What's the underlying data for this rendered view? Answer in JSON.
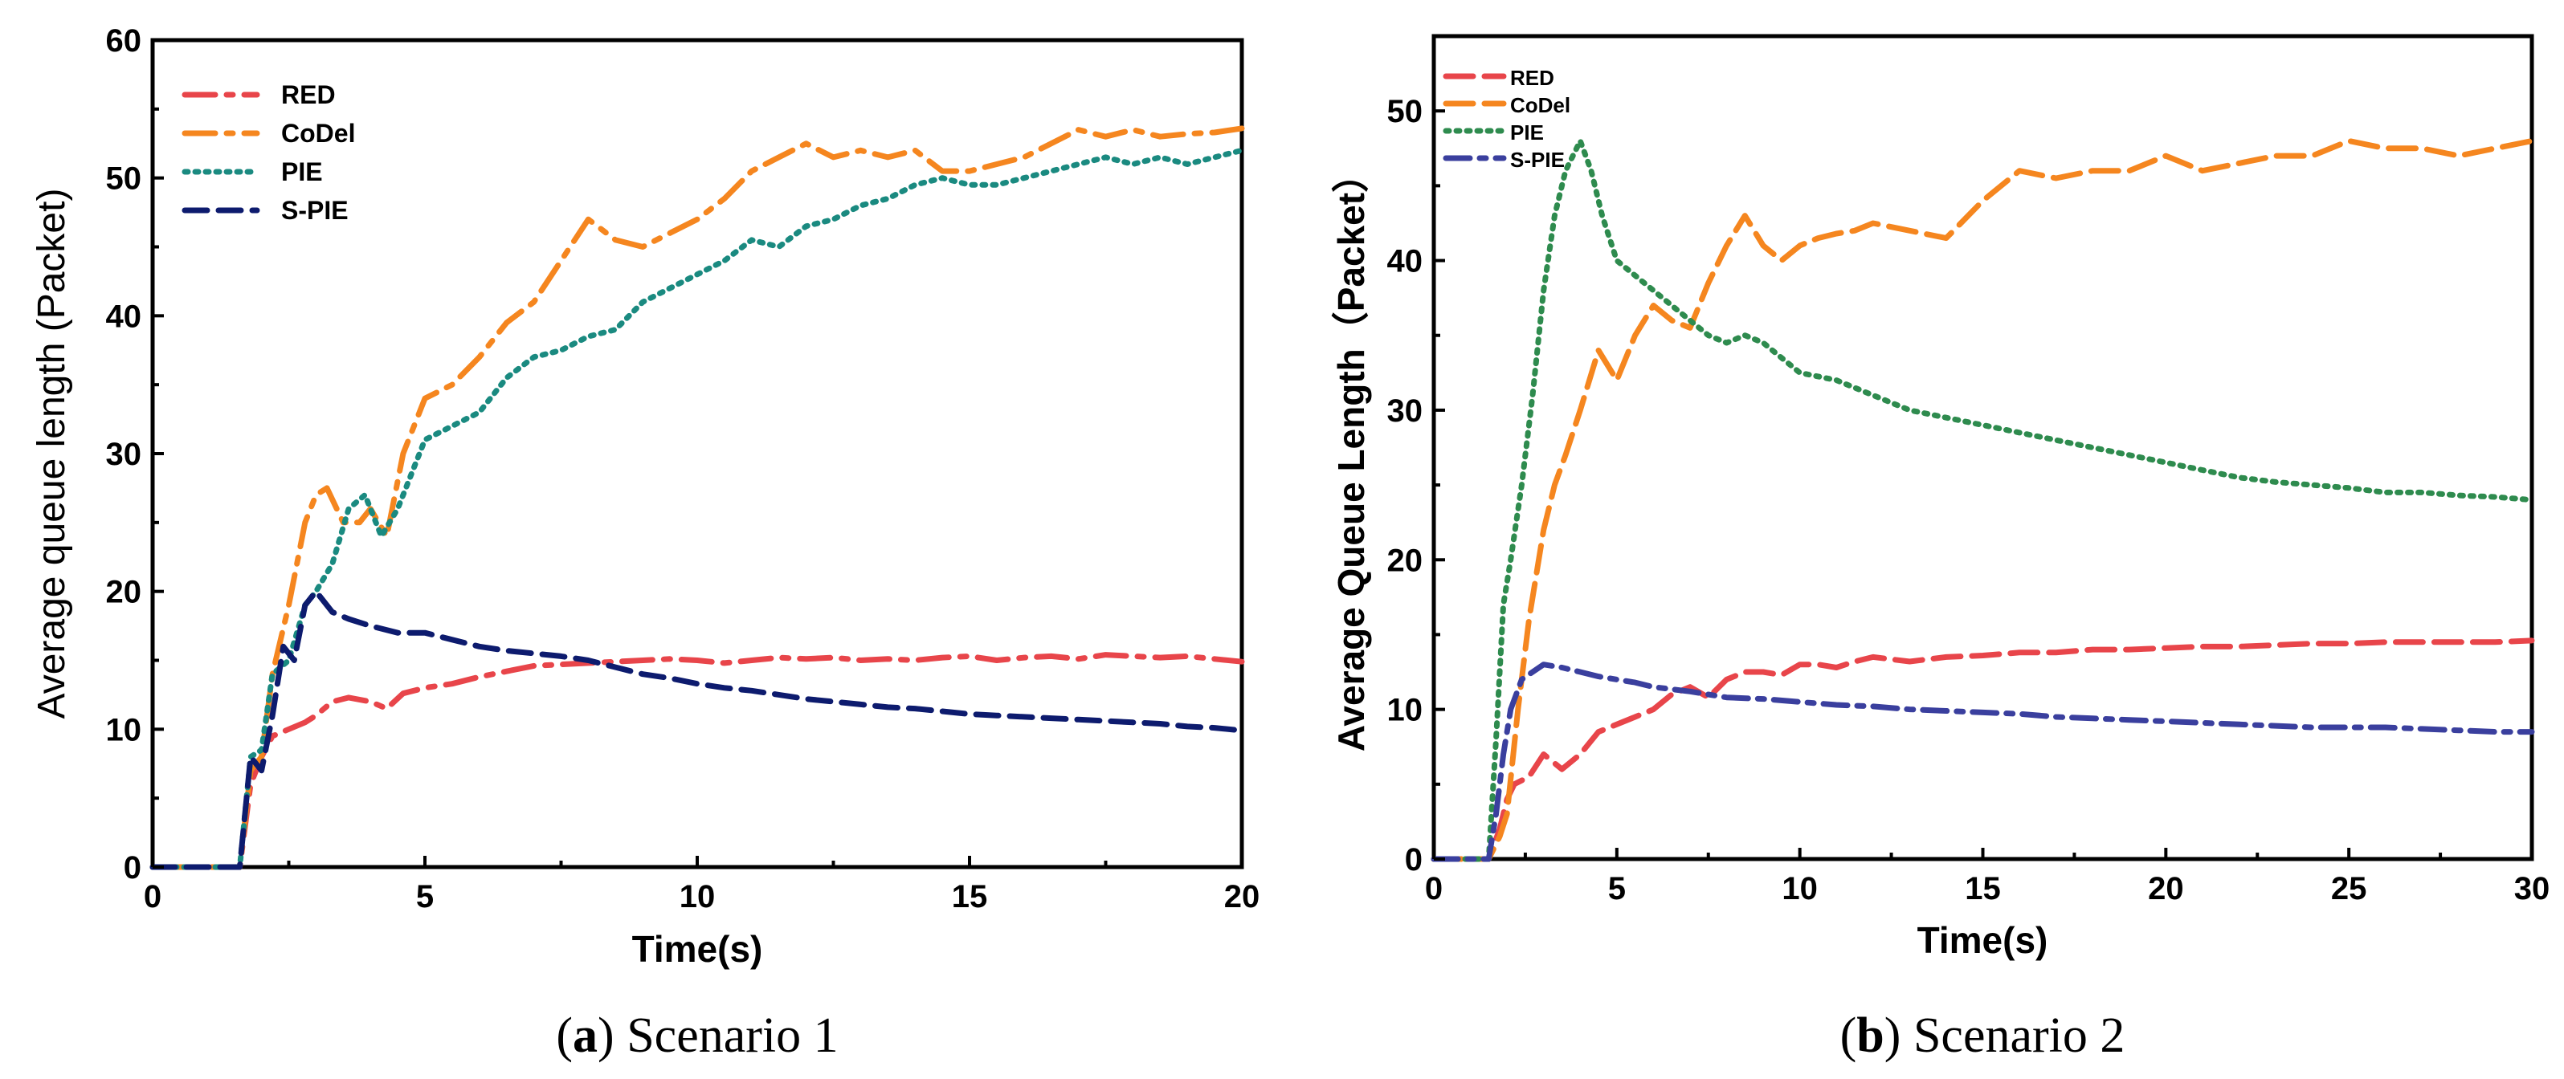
{
  "chart_data": [
    {
      "type": "line",
      "ylabel": "Average queue length (Packet)",
      "xlabel": "Time(s)",
      "xlim": [
        0,
        20
      ],
      "ylim": [
        0,
        60
      ],
      "xticks": [
        0,
        5,
        10,
        15,
        20
      ],
      "yticks": [
        0,
        10,
        20,
        30,
        40,
        50,
        60
      ],
      "legend_position": "top-left",
      "caption_letter": "a",
      "caption_text": "Scenario 1",
      "series": [
        {
          "name": "RED",
          "color": "#e8454a",
          "dash": "38,14,8,14",
          "x": [
            0,
            1.6,
            1.8,
            2.0,
            2.2,
            2.5,
            2.8,
            3.0,
            3.3,
            3.6,
            4.0,
            4.3,
            4.6,
            5.0,
            5.5,
            6.0,
            6.5,
            7.0,
            7.5,
            8.0,
            8.5,
            9.0,
            9.5,
            10.0,
            10.5,
            11.0,
            11.5,
            12.0,
            12.5,
            13.0,
            13.5,
            14.0,
            14.5,
            15.0,
            15.5,
            16.0,
            16.5,
            17.0,
            17.5,
            18.0,
            18.5,
            19.0,
            19.5,
            20.0
          ],
          "y": [
            0,
            0,
            6,
            8,
            9.5,
            10,
            10.5,
            11,
            12,
            12.3,
            12,
            11.5,
            12.6,
            13,
            13.3,
            13.8,
            14.2,
            14.6,
            14.7,
            14.8,
            14.9,
            15,
            15.1,
            15,
            14.8,
            15,
            15.2,
            15.1,
            15.2,
            15,
            15.1,
            15,
            15.2,
            15.3,
            15,
            15.2,
            15.3,
            15.1,
            15.4,
            15.3,
            15.2,
            15.3,
            15.1,
            14.9
          ]
        },
        {
          "name": "CoDel",
          "color": "#f5861f",
          "dash": "38,14,8,14",
          "x": [
            0,
            1.6,
            1.8,
            2.0,
            2.2,
            2.5,
            2.8,
            3.0,
            3.2,
            3.5,
            3.8,
            4.0,
            4.3,
            4.6,
            5.0,
            5.5,
            6.0,
            6.5,
            7.0,
            7.5,
            8.0,
            8.5,
            9.0,
            9.5,
            10.0,
            10.5,
            11.0,
            11.5,
            12.0,
            12.5,
            13.0,
            13.5,
            14.0,
            14.5,
            15.0,
            15.5,
            16.0,
            16.5,
            17.0,
            17.5,
            18.0,
            18.5,
            19.0,
            19.5,
            20.0
          ],
          "y": [
            0,
            0,
            7,
            8,
            14,
            19,
            25,
            27,
            27.5,
            25,
            25,
            26,
            24,
            30,
            34,
            35,
            37,
            39.5,
            41,
            44,
            47,
            45.5,
            45,
            46,
            47,
            48.5,
            50.5,
            51.5,
            52.5,
            51.5,
            52,
            51.5,
            52,
            50.5,
            50.5,
            51,
            51.5,
            52.5,
            53.5,
            53,
            53.5,
            53,
            53.2,
            53.3,
            53.6
          ]
        },
        {
          "name": "PIE",
          "color": "#1a8a80",
          "dash": "4,9",
          "x": [
            0,
            1.6,
            1.8,
            2.0,
            2.2,
            2.5,
            2.8,
            3.0,
            3.3,
            3.6,
            3.9,
            4.2,
            4.5,
            5.0,
            5.5,
            6.0,
            6.5,
            7.0,
            7.5,
            8.0,
            8.5,
            9.0,
            9.5,
            10.0,
            10.5,
            11.0,
            11.5,
            12.0,
            12.5,
            13.0,
            13.5,
            14.0,
            14.5,
            15.0,
            15.5,
            16.0,
            16.5,
            17.0,
            17.5,
            18.0,
            18.5,
            19.0,
            19.5,
            20.0
          ],
          "y": [
            0,
            0,
            8,
            8.5,
            14,
            15,
            19,
            20,
            22,
            26,
            27,
            24,
            26,
            31,
            32,
            33,
            35.5,
            37,
            37.5,
            38.5,
            39,
            41,
            42,
            43,
            44,
            45.5,
            45,
            46.5,
            47,
            48,
            48.5,
            49.5,
            50,
            49.5,
            49.5,
            50,
            50.5,
            51,
            51.5,
            51,
            51.5,
            51,
            51.5,
            52
          ]
        },
        {
          "name": "S-PIE",
          "color": "#0d1b6e",
          "dash": "28,14",
          "x": [
            0,
            1.6,
            1.8,
            2.0,
            2.2,
            2.4,
            2.6,
            2.8,
            3.0,
            3.3,
            3.6,
            4.0,
            4.5,
            5.0,
            5.5,
            6.0,
            6.5,
            7.0,
            7.5,
            8.0,
            8.5,
            9.0,
            9.5,
            10.0,
            10.5,
            11.0,
            11.5,
            12.0,
            12.5,
            13.0,
            13.5,
            14.0,
            14.5,
            15.0,
            15.5,
            16.0,
            16.5,
            17.0,
            17.5,
            18.0,
            18.5,
            19.0,
            19.5,
            20.0
          ],
          "y": [
            0,
            0,
            8,
            7,
            11,
            16,
            15,
            19,
            20,
            18.5,
            18,
            17.5,
            17,
            17,
            16.5,
            16,
            15.7,
            15.5,
            15.3,
            15,
            14.5,
            14,
            13.7,
            13.3,
            13,
            12.8,
            12.5,
            12.2,
            12,
            11.8,
            11.6,
            11.5,
            11.3,
            11.1,
            11,
            10.9,
            10.8,
            10.7,
            10.6,
            10.5,
            10.4,
            10.2,
            10.1,
            9.9
          ]
        }
      ]
    },
    {
      "type": "line",
      "ylabel": "Average Queue Length（Packet）",
      "xlabel": "Time(s)",
      "xlim": [
        0,
        30
      ],
      "ylim": [
        0,
        55
      ],
      "xticks": [
        0,
        5,
        10,
        15,
        20,
        25,
        30
      ],
      "yticks": [
        0,
        10,
        20,
        30,
        40,
        50
      ],
      "legend_position": "top-left",
      "caption_letter": "b",
      "caption_text": "Scenario 2",
      "series": [
        {
          "name": "RED",
          "color": "#e8454a",
          "dash": "34,14",
          "x": [
            0,
            1.5,
            1.8,
            2.0,
            2.2,
            2.6,
            3.0,
            3.5,
            4.0,
            4.5,
            5.0,
            5.5,
            6.0,
            6.5,
            7.0,
            7.5,
            8.0,
            8.5,
            9.0,
            9.5,
            10.0,
            10.5,
            11.0,
            11.5,
            12.0,
            13.0,
            14.0,
            15.0,
            16.0,
            17.0,
            18.0,
            19.0,
            20.0,
            21.0,
            22.0,
            23.0,
            24.0,
            25.0,
            26.0,
            27.0,
            28.0,
            29.0,
            30.0
          ],
          "y": [
            0,
            0,
            2,
            4,
            5,
            5.5,
            7,
            6,
            7,
            8.5,
            9,
            9.5,
            10,
            11,
            11.5,
            10.8,
            12,
            12.5,
            12.5,
            12.3,
            13,
            13,
            12.8,
            13.2,
            13.5,
            13.2,
            13.5,
            13.6,
            13.8,
            13.8,
            14,
            14,
            14.1,
            14.2,
            14.2,
            14.3,
            14.4,
            14.4,
            14.5,
            14.5,
            14.5,
            14.5,
            14.6
          ]
        },
        {
          "name": "CoDel",
          "color": "#f5861f",
          "dash": "34,14",
          "x": [
            0,
            1.5,
            1.8,
            2.0,
            2.3,
            2.6,
            3.0,
            3.3,
            3.6,
            4.0,
            4.5,
            5.0,
            5.5,
            6.0,
            6.5,
            7.0,
            7.5,
            8.0,
            8.5,
            9.0,
            9.5,
            10.0,
            10.5,
            11.0,
            11.5,
            12.0,
            13.0,
            14.0,
            15.0,
            16.0,
            17.0,
            18.0,
            19.0,
            20.0,
            21.0,
            22.0,
            23.0,
            24.0,
            25.0,
            26.0,
            27.0,
            28.0,
            29.0,
            30.0
          ],
          "y": [
            0,
            0,
            1.5,
            3,
            10,
            16,
            22,
            25,
            27,
            30,
            34,
            32,
            35,
            37,
            36,
            35.5,
            38.5,
            41,
            43,
            41,
            40,
            41,
            41.5,
            41.8,
            42,
            42.5,
            42,
            41.5,
            44,
            46,
            45.5,
            46,
            46,
            47,
            46,
            46.5,
            47,
            47,
            48,
            47.5,
            47.5,
            47,
            47.5,
            48
          ]
        },
        {
          "name": "PIE",
          "color": "#2e8b4e",
          "dash": "4,9",
          "x": [
            0,
            1.5,
            1.7,
            1.9,
            2.1,
            2.4,
            2.7,
            3.0,
            3.3,
            3.6,
            4.0,
            4.3,
            4.6,
            5.0,
            5.5,
            6.0,
            6.5,
            7.0,
            7.5,
            8.0,
            8.5,
            9.0,
            9.5,
            10.0,
            11.0,
            12.0,
            13.0,
            14.0,
            15.0,
            16.0,
            17.0,
            18.0,
            19.0,
            20.0,
            21.0,
            22.0,
            23.0,
            24.0,
            25.0,
            26.0,
            27.0,
            28.0,
            29.0,
            30.0
          ],
          "y": [
            0,
            0,
            8,
            17,
            20,
            25,
            31,
            38,
            43,
            46,
            48,
            46,
            43,
            40,
            39,
            38,
            37,
            36,
            35,
            34.5,
            35,
            34.5,
            33.5,
            32.5,
            32,
            31,
            30,
            29.5,
            29,
            28.5,
            28,
            27.5,
            27,
            26.5,
            26,
            25.5,
            25.2,
            25,
            24.8,
            24.5,
            24.5,
            24.3,
            24.2,
            24
          ]
        },
        {
          "name": "S-PIE",
          "color": "#3a3f9e",
          "dash": "30,12,8,12",
          "x": [
            0,
            1.5,
            1.7,
            1.9,
            2.1,
            2.4,
            2.7,
            3.0,
            3.5,
            4.0,
            4.5,
            5.0,
            5.5,
            6.0,
            7.0,
            8.0,
            9.0,
            10.0,
            11.0,
            12.0,
            13.0,
            14.0,
            15.0,
            16.0,
            17.0,
            18.0,
            19.0,
            20.0,
            21.0,
            22.0,
            23.0,
            24.0,
            25.0,
            26.0,
            27.0,
            28.0,
            29.0,
            30.0
          ],
          "y": [
            0,
            0,
            3,
            7,
            10,
            12,
            12.5,
            13,
            12.8,
            12.5,
            12.2,
            12,
            11.8,
            11.5,
            11.2,
            10.8,
            10.7,
            10.5,
            10.3,
            10.2,
            10,
            9.9,
            9.8,
            9.7,
            9.5,
            9.4,
            9.3,
            9.2,
            9.1,
            9,
            8.9,
            8.8,
            8.8,
            8.8,
            8.7,
            8.6,
            8.5,
            8.5
          ]
        }
      ]
    }
  ]
}
